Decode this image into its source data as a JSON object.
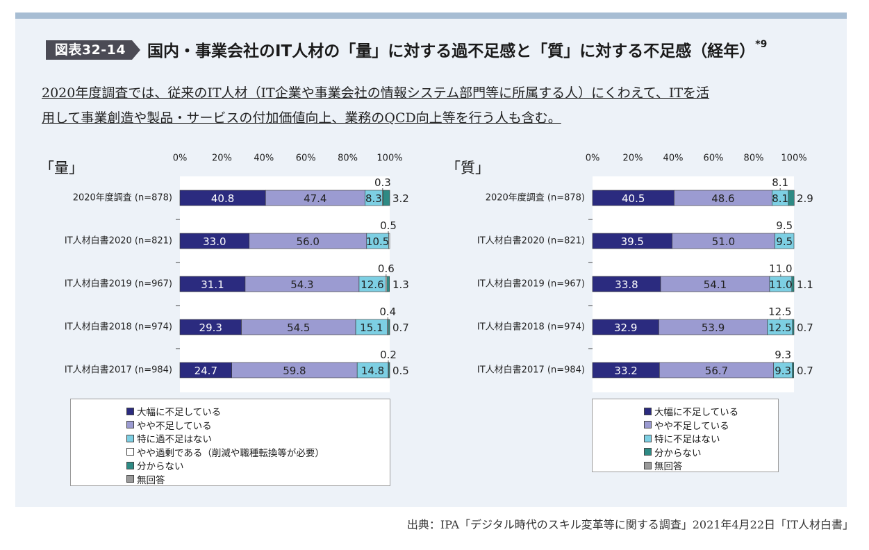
{
  "figure": {
    "badge": "図表32-14",
    "title": "国内・事業会社のIT人材の「量」に対する過不足感と「質」に対する不足感（経年）",
    "title_sup": "*9",
    "note_line1": "2020年度調査では、従来のIT人材（IT企業や事業会社の情報システム部門等に所属する人）にくわえて、ITを活",
    "note_line2": "用して事業創造や製品・サービスの付加価値向上、業務のQCD向上等を行う人も含む。",
    "source": "出典：IPA「デジタル時代のスキル変革等に関する調査」2021年4月22日「IT人材白書」"
  },
  "colors": {
    "panel_bg": "#edf2f8",
    "top_bar": "#a7bdd3",
    "badge": "#4b4b55",
    "severe_shortage": "#2b2b7f",
    "some_shortage": "#9b9bd1",
    "no_shortage": "#7dcfe3",
    "some_surplus": "#ffffff",
    "unknown": "#2e8a84",
    "no_answer": "#9a9a9a"
  },
  "chart_data": [
    {
      "type": "bar",
      "orientation": "horizontal",
      "stacked": true,
      "title": "「量」",
      "xlim": [
        0,
        100
      ],
      "x_ticks": [
        "0%",
        "20%",
        "40%",
        "60%",
        "80%",
        "100%"
      ],
      "categories": [
        "2020年度調査 (n=878)",
        "IT人材白書2020 (n=821)",
        "IT人材白書2019 (n=967)",
        "IT人材白書2018 (n=974)",
        "IT人材白書2017 (n=984)"
      ],
      "series": [
        {
          "name": "大幅に不足している",
          "values": [
            40.8,
            33.0,
            31.1,
            29.3,
            24.7
          ],
          "labels": [
            "40.8",
            "33.0",
            "31.1",
            "29.3",
            "24.7"
          ]
        },
        {
          "name": "やや不足している",
          "values": [
            47.4,
            56.0,
            54.3,
            54.5,
            59.8
          ],
          "labels": [
            "47.4",
            "56.0",
            "54.3",
            "54.5",
            "59.8"
          ]
        },
        {
          "name": "特に過不足はない",
          "values": [
            8.3,
            10.5,
            12.6,
            15.1,
            14.8
          ],
          "labels": [
            "8.3",
            "10.5",
            "12.6",
            "15.1",
            "14.8"
          ]
        },
        {
          "name": "やや過剰である（削減や職種転換等が必要）",
          "values": [
            0.3,
            0.5,
            0.6,
            0.4,
            0.2
          ],
          "labels": [
            "0.3",
            "0.5",
            "0.6",
            "0.4",
            "0.2"
          ]
        },
        {
          "name": "分からない",
          "values": [
            3.2,
            0,
            1.3,
            0.7,
            0.5
          ],
          "labels": [
            "3.2",
            "",
            "1.3",
            "0.7",
            "0.5"
          ]
        },
        {
          "name": "無回答",
          "values": [
            0,
            0,
            0,
            0,
            0
          ],
          "labels": [
            "",
            "",
            "",
            "",
            ""
          ]
        }
      ],
      "legend": [
        "大幅に不足している",
        "やや不足している",
        "特に過不足はない",
        "やや過剰である（削減や職種転換等が必要）",
        "分からない",
        "無回答"
      ]
    },
    {
      "type": "bar",
      "orientation": "horizontal",
      "stacked": true,
      "title": "「質」",
      "xlim": [
        0,
        100
      ],
      "x_ticks": [
        "0%",
        "20%",
        "40%",
        "60%",
        "80%",
        "100%"
      ],
      "categories": [
        "2020年度調査 (n=878)",
        "IT人材白書2020 (n=821)",
        "IT人材白書2019 (n=967)",
        "IT人材白書2018 (n=974)",
        "IT人材白書2017 (n=984)"
      ],
      "series": [
        {
          "name": "大幅に不足している",
          "values": [
            40.5,
            39.5,
            33.8,
            32.9,
            33.2
          ],
          "labels": [
            "40.5",
            "39.5",
            "33.8",
            "32.9",
            "33.2"
          ]
        },
        {
          "name": "やや不足している",
          "values": [
            48.6,
            51.0,
            54.1,
            53.9,
            56.7
          ],
          "labels": [
            "48.6",
            "51.0",
            "54.1",
            "53.9",
            "56.7"
          ]
        },
        {
          "name": "特に不足はない",
          "values": [
            8.1,
            9.5,
            11.0,
            12.5,
            9.3
          ],
          "labels": [
            "8.1",
            "9.5",
            "11.0",
            "12.5",
            "9.3"
          ]
        },
        {
          "name": "分からない",
          "values": [
            2.9,
            0,
            1.1,
            0.7,
            0.7
          ],
          "labels": [
            "2.9",
            "",
            "1.1",
            "0.7",
            "0.7"
          ]
        },
        {
          "name": "無回答",
          "values": [
            0,
            0,
            0,
            0,
            0
          ],
          "labels": [
            "",
            "",
            "",
            "",
            ""
          ]
        }
      ],
      "legend": [
        "大幅に不足している",
        "やや不足している",
        "特に不足はない",
        "分からない",
        "無回答"
      ]
    }
  ]
}
